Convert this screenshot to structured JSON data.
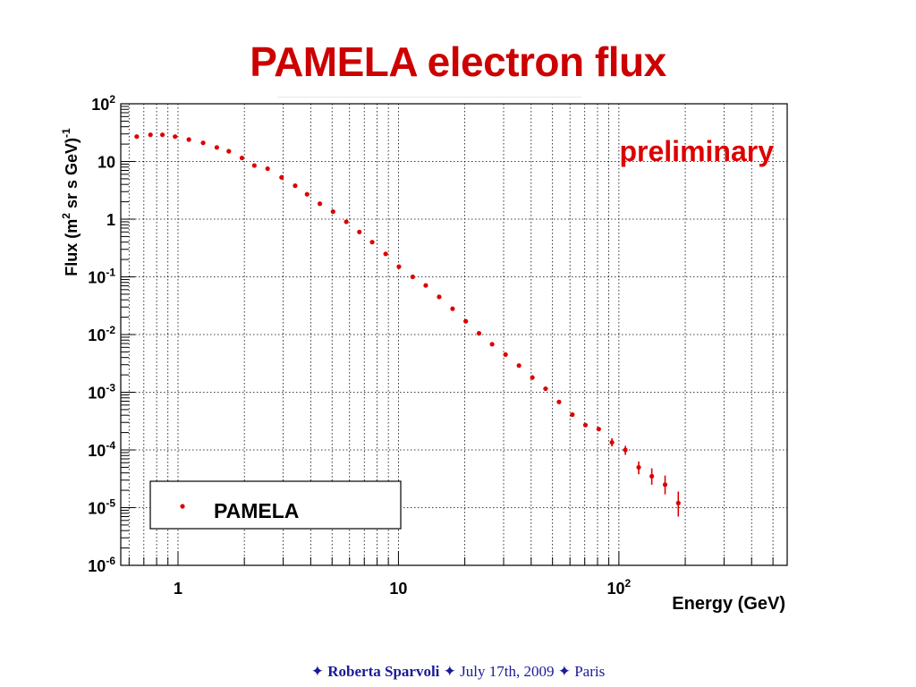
{
  "slide": {
    "title": "PAMELA electron flux",
    "footer": {
      "sep": "✦",
      "author": "Roberta Sparvoli",
      "date": "July 17th, 2009",
      "place": "Paris"
    }
  },
  "colors": {
    "title": "#cc0000",
    "points": "#dd0000",
    "footer": "#1a1a99"
  },
  "chart_data": {
    "type": "scatter",
    "xscale": "log",
    "yscale": "log",
    "xlim": [
      0.55,
      580
    ],
    "ylim": [
      1e-06,
      100
    ],
    "grid": true,
    "xlabel": "Energy (GeV)",
    "ylabel_parts": {
      "pre": "Flux (m",
      "sup": "2",
      "mid": " sr s GeV)",
      "exp": "-1"
    },
    "xticklabels": [
      {
        "value": 1,
        "text": "1"
      },
      {
        "value": 10,
        "text": "10"
      },
      {
        "value": 100,
        "base": "10",
        "exp": "2"
      }
    ],
    "yticklabels": [
      {
        "value": 100,
        "base": "10",
        "exp": "2"
      },
      {
        "value": 10,
        "text": "10"
      },
      {
        "value": 1,
        "text": "1"
      },
      {
        "value": 0.1,
        "base": "10",
        "exp": "-1"
      },
      {
        "value": 0.01,
        "base": "10",
        "exp": "-2"
      },
      {
        "value": 0.001,
        "base": "10",
        "exp": "-3"
      },
      {
        "value": 0.0001,
        "base": "10",
        "exp": "-4"
      },
      {
        "value": 1e-05,
        "base": "10",
        "exp": "-5"
      },
      {
        "value": 1e-06,
        "base": "10",
        "exp": "-6"
      }
    ],
    "annotation": "preliminary",
    "legend": {
      "position": "bottom-left",
      "label": "PAMELA"
    },
    "series": [
      {
        "name": "PAMELA",
        "points": [
          {
            "x": 0.65,
            "y": 27
          },
          {
            "x": 0.75,
            "y": 29
          },
          {
            "x": 0.85,
            "y": 29
          },
          {
            "x": 0.97,
            "y": 27
          },
          {
            "x": 1.12,
            "y": 24
          },
          {
            "x": 1.3,
            "y": 21
          },
          {
            "x": 1.5,
            "y": 17.5
          },
          {
            "x": 1.7,
            "y": 15
          },
          {
            "x": 1.95,
            "y": 11.5
          },
          {
            "x": 2.22,
            "y": 8.5
          },
          {
            "x": 2.55,
            "y": 7.5
          },
          {
            "x": 2.95,
            "y": 5.3
          },
          {
            "x": 3.4,
            "y": 3.8
          },
          {
            "x": 3.85,
            "y": 2.7
          },
          {
            "x": 4.4,
            "y": 1.85
          },
          {
            "x": 5.05,
            "y": 1.35
          },
          {
            "x": 5.8,
            "y": 0.9
          },
          {
            "x": 6.65,
            "y": 0.6
          },
          {
            "x": 7.6,
            "y": 0.4
          },
          {
            "x": 8.75,
            "y": 0.25
          },
          {
            "x": 10.05,
            "y": 0.15
          },
          {
            "x": 11.6,
            "y": 0.1
          },
          {
            "x": 13.3,
            "y": 0.071
          },
          {
            "x": 15.3,
            "y": 0.045
          },
          {
            "x": 17.6,
            "y": 0.028
          },
          {
            "x": 20.2,
            "y": 0.017
          },
          {
            "x": 23.2,
            "y": 0.0105
          },
          {
            "x": 26.6,
            "y": 0.0068
          },
          {
            "x": 30.6,
            "y": 0.0045
          },
          {
            "x": 35.2,
            "y": 0.0029
          },
          {
            "x": 40.5,
            "y": 0.0018
          },
          {
            "x": 46.5,
            "y": 0.00115
          },
          {
            "x": 53.5,
            "y": 0.00068
          },
          {
            "x": 61.5,
            "y": 0.00041
          },
          {
            "x": 70.5,
            "y": 0.00027
          },
          {
            "x": 81,
            "y": 0.00023
          },
          {
            "x": 93,
            "y": 0.000135,
            "ylo": 0.000115,
            "yhi": 0.00016
          },
          {
            "x": 107,
            "y": 0.0001,
            "ylo": 8.2e-05,
            "yhi": 0.000118
          },
          {
            "x": 123,
            "y": 5e-05,
            "ylo": 3.8e-05,
            "yhi": 6.3e-05
          },
          {
            "x": 141,
            "y": 3.5e-05,
            "ylo": 2.5e-05,
            "yhi": 4.8e-05
          },
          {
            "x": 162,
            "y": 2.5e-05,
            "ylo": 1.7e-05,
            "yhi": 3.6e-05
          },
          {
            "x": 186,
            "y": 1.2e-05,
            "ylo": 7e-06,
            "yhi": 1.9e-05
          }
        ]
      }
    ]
  }
}
